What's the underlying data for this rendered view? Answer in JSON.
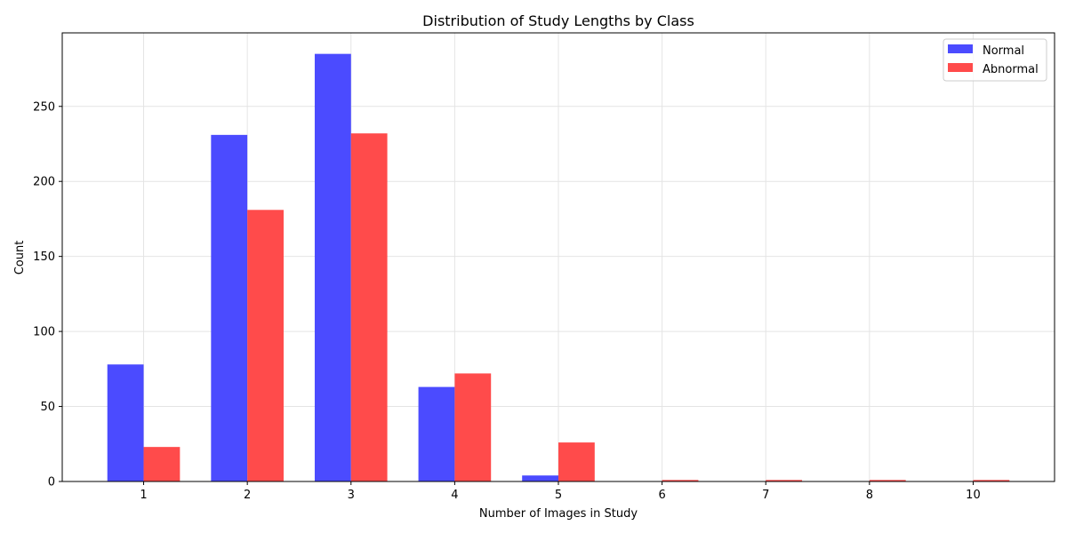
{
  "chart_data": {
    "type": "bar",
    "title": "Distribution of Study Lengths by Class",
    "xlabel": "Number of Images in Study",
    "ylabel": "Count",
    "categories": [
      "1",
      "2",
      "3",
      "4",
      "5",
      "6",
      "7",
      "8",
      "10"
    ],
    "series": [
      {
        "name": "Normal",
        "color": "#4b4bff",
        "values": [
          78,
          231,
          285,
          63,
          4,
          0,
          0,
          0,
          0
        ]
      },
      {
        "name": "Abnormal",
        "color": "#ff4b4b",
        "values": [
          23,
          181,
          232,
          72,
          26,
          1,
          1,
          1,
          1
        ]
      }
    ],
    "ylim": [
      0,
      299
    ],
    "yticks": [
      0,
      50,
      100,
      150,
      200,
      250
    ],
    "grid": true,
    "legend_position": "top-right"
  }
}
